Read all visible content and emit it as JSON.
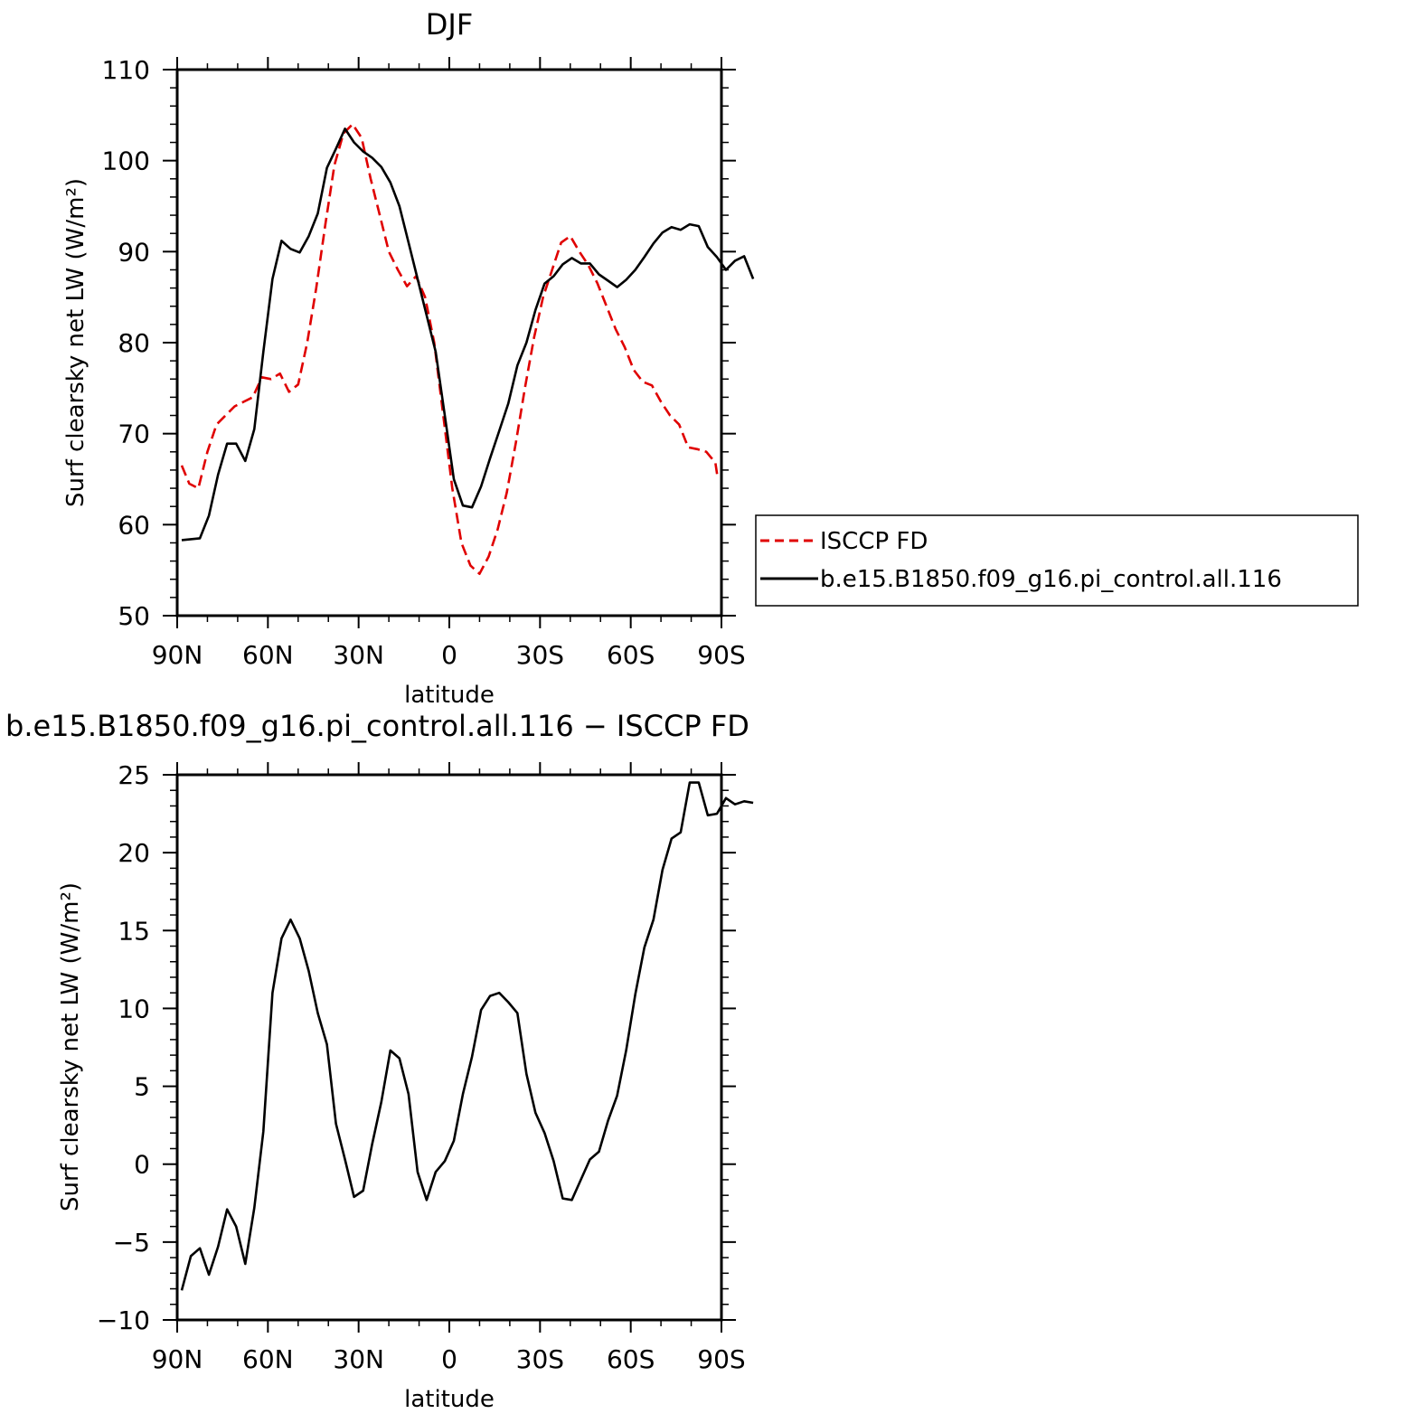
{
  "chart_data": [
    {
      "type": "line",
      "title": "DJF",
      "xlabel": "latitude",
      "ylabel": "Surf clearsky net LW (W/m²)",
      "xlim": [
        -90,
        90
      ],
      "ylim": [
        50,
        110
      ],
      "xticks": [
        -90,
        -60,
        -30,
        0,
        30,
        60,
        90
      ],
      "xtick_labels": [
        "90N",
        "60N",
        "30N",
        "0",
        "30S",
        "60S",
        "90S"
      ],
      "yticks": [
        50,
        60,
        70,
        80,
        90,
        100,
        110
      ],
      "ytick_labels": [
        "50",
        "60",
        "70",
        "80",
        "90",
        "100",
        "110"
      ],
      "legend_position": "right",
      "series": [
        {
          "name": "ISCCP FD",
          "color": "#e00000",
          "dash": "dashed",
          "points": [
            [
              -88.5,
              66.5
            ],
            [
              -86,
              64.5
            ],
            [
              -83,
              64
            ],
            [
              -80,
              68
            ],
            [
              -77,
              71
            ],
            [
              -74,
              72
            ],
            [
              -71,
              73
            ],
            [
              -68,
              73.5
            ],
            [
              -65,
              74
            ],
            [
              -62,
              76.2
            ],
            [
              -59,
              76
            ],
            [
              -56,
              76.6
            ],
            [
              -53,
              74.6
            ],
            [
              -50,
              75.4
            ],
            [
              -47,
              80
            ],
            [
              -44,
              86
            ],
            [
              -41,
              93
            ],
            [
              -38,
              99.5
            ],
            [
              -35,
              103
            ],
            [
              -32,
              104
            ],
            [
              -29,
              102.5
            ],
            [
              -26,
              98
            ],
            [
              -23,
              94
            ],
            [
              -20,
              90
            ],
            [
              -17,
              88
            ],
            [
              -14,
              86.2
            ],
            [
              -11,
              87.3
            ],
            [
              -8,
              85
            ],
            [
              -5,
              80
            ],
            [
              -2,
              72
            ],
            [
              1,
              64
            ],
            [
              4,
              58
            ],
            [
              7,
              55.5
            ],
            [
              10,
              54.6
            ],
            [
              13,
              56.5
            ],
            [
              16,
              59.5
            ],
            [
              19,
              63.5
            ],
            [
              22,
              69
            ],
            [
              25,
              75
            ],
            [
              28,
              80.5
            ],
            [
              31,
              85
            ],
            [
              34,
              88
            ],
            [
              37,
              91
            ],
            [
              40,
              91.7
            ],
            [
              43,
              90
            ],
            [
              46,
              88.5
            ],
            [
              49,
              86.5
            ],
            [
              52,
              84
            ],
            [
              55,
              81.5
            ],
            [
              58,
              79.5
            ],
            [
              61,
              77
            ],
            [
              64,
              75.7
            ],
            [
              67,
              75.3
            ],
            [
              70,
              73.5
            ],
            [
              73,
              72
            ],
            [
              76,
              71
            ],
            [
              79,
              68.5
            ],
            [
              82,
              68.3
            ],
            [
              85,
              68
            ],
            [
              88,
              66.8
            ],
            [
              88.8,
              65
            ]
          ]
        },
        {
          "name": "b.e15.B1850.f09_g16.pi_control.all.116",
          "color": "#000000",
          "dash": "solid",
          "points": [
            [
              -88.5,
              58.3
            ],
            [
              -85.5,
              58.4
            ],
            [
              -82.5,
              58.5
            ],
            [
              -79.5,
              61
            ],
            [
              -76.5,
              65.5
            ],
            [
              -73.5,
              68.9
            ],
            [
              -70.5,
              68.9
            ],
            [
              -67.5,
              67
            ],
            [
              -64.5,
              70.5
            ],
            [
              -61.5,
              79
            ],
            [
              -58.5,
              87
            ],
            [
              -55.5,
              91.2
            ],
            [
              -52.5,
              90.3
            ],
            [
              -49.5,
              89.9
            ],
            [
              -46.5,
              91.7
            ],
            [
              -43.5,
              94.2
            ],
            [
              -40.5,
              99.2
            ],
            [
              -37.5,
              101.3
            ],
            [
              -34.5,
              103.5
            ],
            [
              -31.5,
              102
            ],
            [
              -28.5,
              101
            ],
            [
              -25.5,
              100.3
            ],
            [
              -22.5,
              99.3
            ],
            [
              -19.5,
              97.6
            ],
            [
              -16.5,
              95
            ],
            [
              -13.5,
              91
            ],
            [
              -10.5,
              87
            ],
            [
              -7.5,
              83
            ],
            [
              -4.5,
              79
            ],
            [
              -1.5,
              72
            ],
            [
              1.5,
              65
            ],
            [
              4.5,
              62.1
            ],
            [
              7.5,
              61.9
            ],
            [
              10.5,
              64.2
            ],
            [
              13.5,
              67.3
            ],
            [
              16.5,
              70.3
            ],
            [
              19.5,
              73.3
            ],
            [
              22.5,
              77.5
            ],
            [
              25.5,
              80
            ],
            [
              28.5,
              83.6
            ],
            [
              31.5,
              86.5
            ],
            [
              34.5,
              87.3
            ],
            [
              37.5,
              88.6
            ],
            [
              40.5,
              89.3
            ],
            [
              43.5,
              88.7
            ],
            [
              46.5,
              88.7
            ],
            [
              49.5,
              87.5
            ],
            [
              52.5,
              86.8
            ],
            [
              55.5,
              86.1
            ],
            [
              58.5,
              86.9
            ],
            [
              61.5,
              88
            ],
            [
              64.5,
              89.4
            ],
            [
              67.5,
              90.9
            ],
            [
              70.5,
              92.1
            ],
            [
              73.5,
              92.7
            ],
            [
              76.5,
              92.4
            ],
            [
              79.5,
              93.0
            ],
            [
              82.5,
              92.8
            ],
            [
              85.5,
              90.5
            ],
            [
              88.5,
              89.4
            ],
            [
              91.5,
              88.0
            ],
            [
              94.5,
              89.0
            ],
            [
              97.5,
              89.5
            ],
            [
              100.5,
              87.0
            ]
          ]
        }
      ]
    },
    {
      "type": "line",
      "title": "b.e15.B1850.f09_g16.pi_control.all.116 − ISCCP FD",
      "xlabel": "latitude",
      "ylabel": "Surf clearsky net LW (W/m²)",
      "xlim": [
        -90,
        90
      ],
      "ylim": [
        -10,
        25
      ],
      "xticks": [
        -90,
        -60,
        -30,
        0,
        30,
        60,
        90
      ],
      "xtick_labels": [
        "90N",
        "60N",
        "30N",
        "0",
        "30S",
        "60S",
        "90S"
      ],
      "yticks": [
        -10,
        -5,
        0,
        5,
        10,
        15,
        20,
        25
      ],
      "ytick_labels": [
        "−10",
        "−5",
        "0",
        "5",
        "10",
        "15",
        "20",
        "25"
      ],
      "series": [
        {
          "color": "#000000",
          "dash": "solid",
          "points": [
            [
              -88.5,
              -8.1
            ],
            [
              -85.5,
              -5.9
            ],
            [
              -82.5,
              -5.4
            ],
            [
              -79.5,
              -7.1
            ],
            [
              -76.5,
              -5.3
            ],
            [
              -73.5,
              -2.9
            ],
            [
              -70.5,
              -4.0
            ],
            [
              -67.5,
              -6.4
            ],
            [
              -64.5,
              -2.8
            ],
            [
              -61.5,
              2.1
            ],
            [
              -58.5,
              11
            ],
            [
              -55.5,
              14.5
            ],
            [
              -52.5,
              15.7
            ],
            [
              -49.5,
              14.5
            ],
            [
              -46.5,
              12.4
            ],
            [
              -43.5,
              9.7
            ],
            [
              -40.5,
              7.7
            ],
            [
              -37.5,
              2.6
            ],
            [
              -34.5,
              0.3
            ],
            [
              -31.5,
              -2.1
            ],
            [
              -28.5,
              -1.7
            ],
            [
              -25.5,
              1.3
            ],
            [
              -22.5,
              4.0
            ],
            [
              -19.5,
              7.3
            ],
            [
              -16.5,
              6.8
            ],
            [
              -13.5,
              4.5
            ],
            [
              -10.5,
              -0.5
            ],
            [
              -7.5,
              -2.3
            ],
            [
              -4.5,
              -0.5
            ],
            [
              -1.5,
              0.2
            ],
            [
              1.5,
              1.5
            ],
            [
              4.5,
              4.5
            ],
            [
              7.5,
              6.9
            ],
            [
              10.5,
              9.9
            ],
            [
              13.5,
              10.8
            ],
            [
              16.5,
              11.0
            ],
            [
              19.5,
              10.4
            ],
            [
              22.5,
              9.7
            ],
            [
              25.5,
              5.8
            ],
            [
              28.5,
              3.3
            ],
            [
              31.5,
              2.0
            ],
            [
              34.5,
              0.2
            ],
            [
              37.5,
              -2.2
            ],
            [
              40.5,
              -2.3
            ],
            [
              43.5,
              -1.0
            ],
            [
              46.5,
              0.3
            ],
            [
              49.5,
              0.8
            ],
            [
              52.5,
              2.8
            ],
            [
              55.5,
              4.4
            ],
            [
              58.5,
              7.3
            ],
            [
              61.5,
              10.9
            ],
            [
              64.5,
              13.9
            ],
            [
              67.5,
              15.7
            ],
            [
              70.5,
              18.9
            ],
            [
              73.5,
              20.9
            ],
            [
              76.5,
              21.3
            ],
            [
              79.5,
              24.5
            ],
            [
              82.5,
              24.5
            ],
            [
              85.5,
              22.4
            ],
            [
              88.5,
              22.5
            ],
            [
              91.5,
              23.5
            ],
            [
              94.5,
              23.1
            ],
            [
              97.5,
              23.3
            ],
            [
              100.5,
              23.2
            ]
          ]
        }
      ]
    }
  ]
}
